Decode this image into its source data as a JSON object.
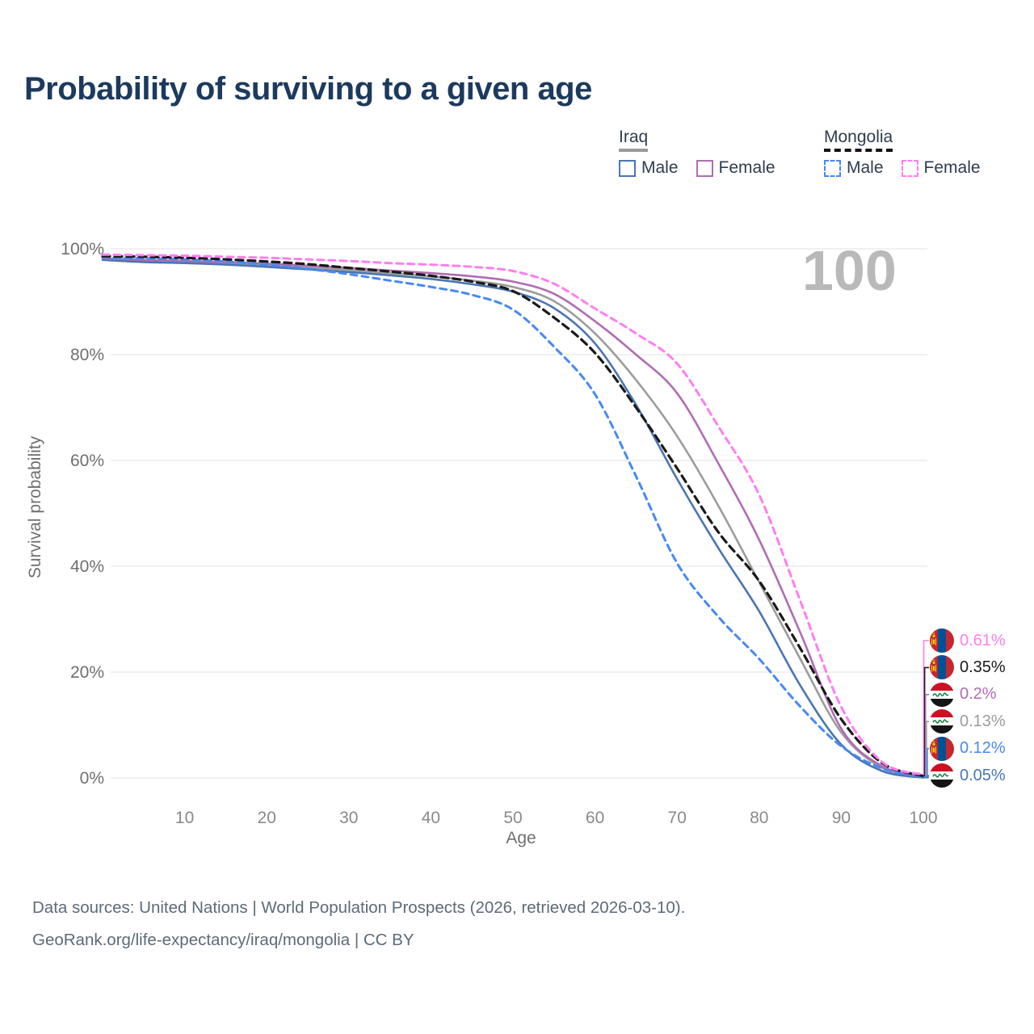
{
  "title": "Probability of surviving to a given age",
  "age_watermark": "100",
  "legend": {
    "groups": [
      {
        "label": "Iraq",
        "underline_style": "solid",
        "underline_color": "#9a9a9a",
        "items": [
          {
            "label": "Male",
            "color": "#4a76b2",
            "dashed": false
          },
          {
            "label": "Female",
            "color": "#b06cb3",
            "dashed": false
          }
        ]
      },
      {
        "label": "Mongolia",
        "underline_style": "dashed",
        "underline_color": "#141414",
        "items": [
          {
            "label": "Male",
            "color": "#4789f3",
            "dashed": true
          },
          {
            "label": "Female",
            "color": "#ff7ef0",
            "dashed": true
          }
        ]
      }
    ]
  },
  "chart_data": {
    "type": "line",
    "title": "Probability of surviving to a given age",
    "xlabel": "Age",
    "ylabel": "Survival probability",
    "xlim": [
      0,
      100
    ],
    "ylim": [
      0,
      100
    ],
    "grid": "horizontal",
    "legend_position": "top-right",
    "x_ticks": [
      {
        "value": 10,
        "label": "10"
      },
      {
        "value": 20,
        "label": "20"
      },
      {
        "value": 30,
        "label": "30"
      },
      {
        "value": 40,
        "label": "40"
      },
      {
        "value": 50,
        "label": "50"
      },
      {
        "value": 60,
        "label": "60"
      },
      {
        "value": 70,
        "label": "70"
      },
      {
        "value": 80,
        "label": "80"
      },
      {
        "value": 90,
        "label": "90"
      },
      {
        "value": 100,
        "label": "100"
      }
    ],
    "y_ticks": [
      {
        "value": 0,
        "label": "0%"
      },
      {
        "value": 20,
        "label": "20%"
      },
      {
        "value": 40,
        "label": "40%"
      },
      {
        "value": 60,
        "label": "60%"
      },
      {
        "value": 80,
        "label": "80%"
      },
      {
        "value": 100,
        "label": "100%"
      }
    ],
    "ages": [
      0,
      5,
      10,
      15,
      20,
      25,
      30,
      35,
      40,
      45,
      50,
      55,
      60,
      65,
      70,
      75,
      80,
      85,
      90,
      95,
      100
    ],
    "series": [
      {
        "name": "Iraq Both sexes",
        "country": "iraq",
        "flag": "iraq",
        "color": "#9c9c9c",
        "dash": null,
        "width": 2.6,
        "end_label": "0.13%",
        "values": [
          98.0,
          97.7,
          97.5,
          97.2,
          96.9,
          96.4,
          96.0,
          95.4,
          94.8,
          94.0,
          92.8,
          90.1,
          84.0,
          75.2,
          64.6,
          51.5,
          37.0,
          22.5,
          8.6,
          1.9,
          0.13
        ]
      },
      {
        "name": "Iraq Male",
        "country": "iraq",
        "flag": "iraq",
        "color": "#4a76b2",
        "dash": null,
        "width": 2.6,
        "end_label": "0.05%",
        "values": [
          97.9,
          97.5,
          97.3,
          97.0,
          96.6,
          96.1,
          95.6,
          95.0,
          94.3,
          93.3,
          91.9,
          88.8,
          82.1,
          70.5,
          56.5,
          43.5,
          31.5,
          17.5,
          6.3,
          1.3,
          0.05
        ]
      },
      {
        "name": "Iraq Female",
        "country": "iraq",
        "flag": "iraq",
        "color": "#b06cb3",
        "dash": null,
        "width": 2.6,
        "end_label": "0.2%",
        "values": [
          98.2,
          97.9,
          97.7,
          97.5,
          97.2,
          96.8,
          96.4,
          95.9,
          95.4,
          94.8,
          93.8,
          91.5,
          86.3,
          80.0,
          72.7,
          59.5,
          45.0,
          27.5,
          9.3,
          2.2,
          0.2
        ]
      },
      {
        "name": "Mongolia Male",
        "country": "mongolia",
        "flag": "mongolia",
        "color": "#4789f3",
        "dash": "8 6",
        "width": 3,
        "end_label": "0.12%",
        "values": [
          98.4,
          98.2,
          98.0,
          97.6,
          97.0,
          96.2,
          95.2,
          94.0,
          92.8,
          91.3,
          88.5,
          81.5,
          72.5,
          57.0,
          40.6,
          30.5,
          22.5,
          13.5,
          6.0,
          1.8,
          0.12
        ]
      },
      {
        "name": "Mongolia Both sexes",
        "country": "mongolia",
        "flag": "mongolia",
        "color": "#1a1a1a",
        "dash": "9 6",
        "width": 3.2,
        "end_label": "0.35%",
        "values": [
          98.6,
          98.5,
          98.3,
          98.0,
          97.6,
          97.1,
          96.4,
          95.7,
          94.9,
          93.8,
          92.0,
          87.0,
          80.3,
          70.0,
          58.5,
          46.5,
          37.2,
          24.5,
          11.1,
          2.8,
          0.35
        ]
      },
      {
        "name": "Mongolia Female",
        "country": "mongolia",
        "flag": "mongolia",
        "color": "#ff7ef0",
        "dash": "8 6",
        "width": 3,
        "end_label": "0.61%",
        "values": [
          98.9,
          98.8,
          98.7,
          98.5,
          98.3,
          98.0,
          97.7,
          97.3,
          97.0,
          96.6,
          95.8,
          93.4,
          88.7,
          84.0,
          78.3,
          66.5,
          53.5,
          33.5,
          13.4,
          3.0,
          0.61
        ]
      }
    ]
  },
  "footer": {
    "line1": "Data sources: United Nations | World Population Prospects (2026, retrieved 2026-03-10).",
    "line2": "GeoRank.org/life-expectancy/iraq/mongolia | CC BY"
  },
  "flag_colors": {
    "iraq_red": "#cd1125",
    "iraq_white": "#ffffff",
    "iraq_black": "#141414",
    "iraq_green": "#0e7a3e",
    "mongolia_red": "#c4272f",
    "mongolia_blue": "#015197",
    "mongolia_yellow": "#f9cf02"
  }
}
